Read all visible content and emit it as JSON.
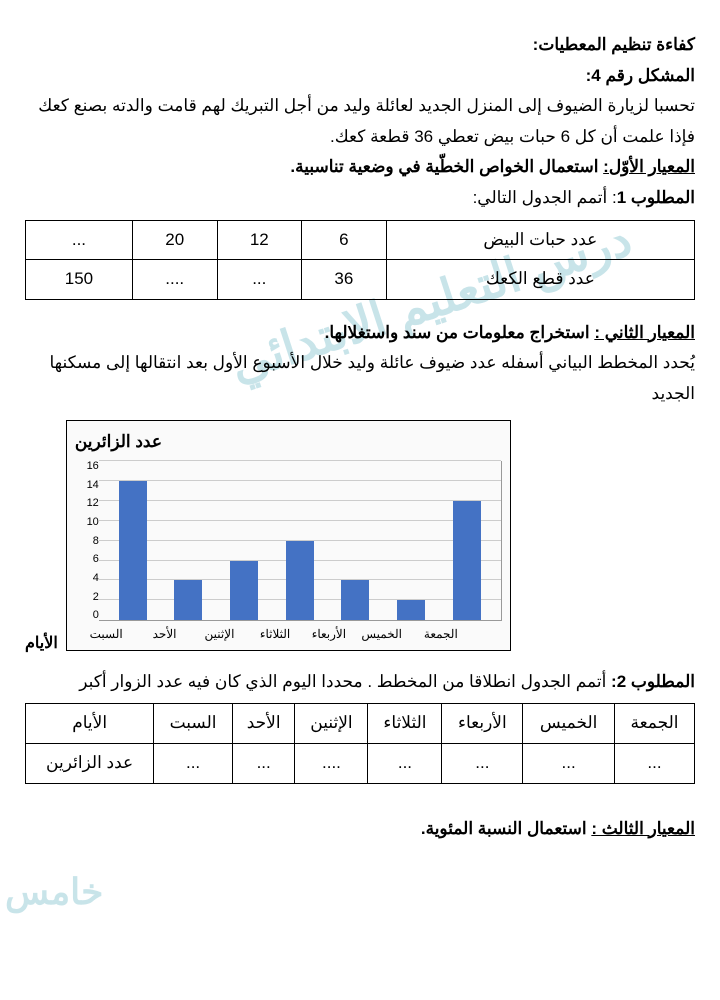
{
  "heading": "كفاءة تنظيم المعطيات:",
  "problem_title": "المشكل رقم 4:",
  "intro_line1": "تحسبا لزيارة الضيوف إلى المنزل الجديد لعائلة وليد من أجل التبريك لهم قامت والدته بصنع كعك",
  "intro_line2": "فإذا علمت أن كل 6 حبات بيض تعطي 36 قطعة كعك.",
  "criterion1_label": "المعيار الأوّل:",
  "criterion1_text": " استعمال الخواص الخطّية في وضعية تناسبية.",
  "task1_label": "المطلوب 1",
  "task1_text": ": أتمم الجدول التالي:",
  "table1": {
    "row1_header": "عدد حبات البيض",
    "row1": [
      "6",
      "12",
      "20",
      "..."
    ],
    "row2_header": "عدد قطع الكعك",
    "row2": [
      "36",
      "...",
      "....",
      "150"
    ]
  },
  "criterion2_label": "المعيار الثاني :",
  "criterion2_text": " استخراج معلومات من سند واستغلالها.",
  "chart_intro": "يُحدد المخطط البياني أسفله عدد ضيوف عائلة وليد خلال الأسبوع الأول بعد انتقالها إلى مسكنها الجديد",
  "chart": {
    "y_title": "عدد الزائرين",
    "x_title": "الأيام",
    "ymax": 16,
    "ystep": 2,
    "grid_color": "#cccccc",
    "bar_color": "#4472c4",
    "bg_color": "#fafafa",
    "categories_ltr": [
      "السبت",
      "الأحد",
      "الإثنين",
      "الثلاثاء",
      "الأربعاء",
      "الخميس",
      "الجمعة"
    ],
    "values_ltr": [
      14,
      4,
      6,
      8,
      4,
      2,
      12
    ]
  },
  "task2_label": "المطلوب 2:",
  "task2_text": " أتمم الجدول انطلاقا من المخطط . محددا اليوم الذي كان فيه عدد الزوار أكبر",
  "table2": {
    "headers": [
      "الجمعة",
      "الخميس",
      "الأربعاء",
      "الثلاثاء",
      "الإثنين",
      "الأحد",
      "السبت",
      "الأيام"
    ],
    "row_label": "عدد الزائرين",
    "cells": [
      "...",
      "...",
      "...",
      "...",
      "....",
      "...",
      "..."
    ]
  },
  "criterion3_label": "المعيار الثالث :",
  "criterion3_text": " استعمال النسبة المئوية.",
  "watermark1": "درس التعليم الابتدائي",
  "watermark2": "خامس"
}
